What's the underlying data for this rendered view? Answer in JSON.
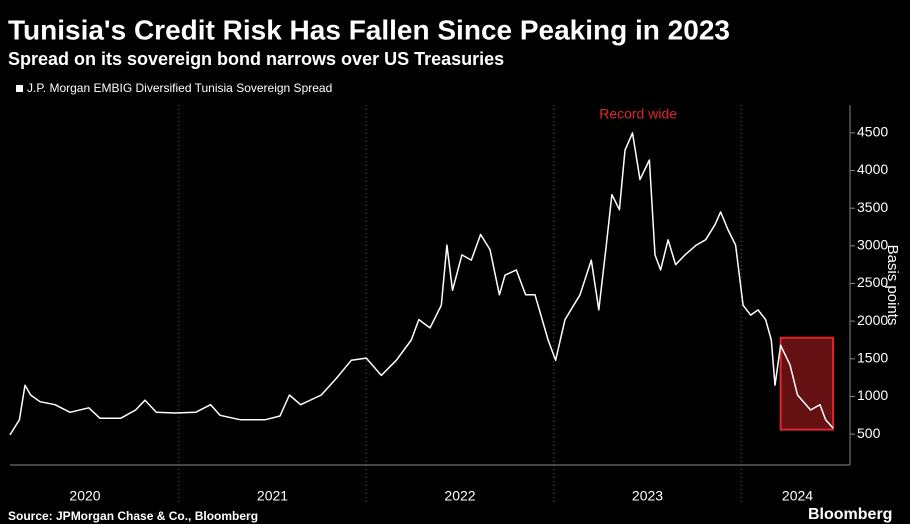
{
  "chart_data": {
    "type": "line",
    "title": "Tunisia's Credit Risk Has Fallen Since Peaking in 2023",
    "subtitle": "Spread on its sovereign bond narrows over US Treasuries",
    "y_label": "Basis points",
    "source": "Source: JPMorgan Chase & Co., Bloomberg",
    "brand": "Bloomberg",
    "x": [
      2020.1,
      2020.15,
      2020.18,
      2020.21,
      2020.26,
      2020.34,
      2020.42,
      2020.52,
      2020.58,
      2020.69,
      2020.77,
      2020.82,
      2020.88,
      2020.98,
      2021.09,
      2021.17,
      2021.22,
      2021.33,
      2021.46,
      2021.54,
      2021.59,
      2021.65,
      2021.76,
      2021.84,
      2021.92,
      2022.0,
      2022.08,
      2022.16,
      2022.24,
      2022.28,
      2022.34,
      2022.4,
      2022.43,
      2022.46,
      2022.51,
      2022.56,
      2022.61,
      2022.66,
      2022.71,
      2022.74,
      2022.8,
      2022.85,
      2022.9,
      2022.97,
      2023.01,
      2023.06,
      2023.14,
      2023.2,
      2023.24,
      2023.28,
      2023.31,
      2023.35,
      2023.38,
      2023.42,
      2023.46,
      2023.51,
      2023.54,
      2023.57,
      2023.61,
      2023.65,
      2023.7,
      2023.76,
      2023.81,
      2023.86,
      2023.89,
      2023.93,
      2023.97,
      2024.01,
      2024.05,
      2024.09,
      2024.13,
      2024.16,
      2024.18,
      2024.21,
      2024.26,
      2024.3,
      2024.37,
      2024.42,
      2024.45,
      2024.49
    ],
    "series": [
      {
        "name": "J.P. Morgan EMBIG Diversified Tunisia Sovereign Spread",
        "color": "#ffffff",
        "values": [
          490,
          690,
          1150,
          1020,
          930,
          890,
          790,
          850,
          710,
          710,
          820,
          950,
          790,
          780,
          790,
          890,
          750,
          690,
          690,
          740,
          1020,
          890,
          1020,
          1240,
          1480,
          1510,
          1280,
          1480,
          1750,
          2020,
          1910,
          2210,
          3010,
          2410,
          2880,
          2810,
          3150,
          2950,
          2350,
          2610,
          2680,
          2350,
          2350,
          1750,
          1480,
          2020,
          2350,
          2810,
          2150,
          3010,
          3680,
          3480,
          4270,
          4500,
          3880,
          4140,
          2880,
          2680,
          3080,
          2750,
          2880,
          3010,
          3080,
          3280,
          3450,
          3210,
          3010,
          2210,
          2080,
          2150,
          2020,
          1750,
          1150,
          1680,
          1420,
          1020,
          820,
          890,
          690,
          580
        ]
      }
    ],
    "xlim": [
      2020.1,
      2024.58
    ],
    "xticks": [
      {
        "value": 2020.5,
        "label": "2020"
      },
      {
        "value": 2021.5,
        "label": "2021"
      },
      {
        "value": 2022.5,
        "label": "2022"
      },
      {
        "value": 2023.5,
        "label": "2023"
      },
      {
        "value": 2024.3,
        "label": "2024"
      }
    ],
    "xgrid": [
      2021,
      2022,
      2023,
      2024
    ],
    "ylim": [
      90,
      4870
    ],
    "yticks": [
      500,
      1000,
      1500,
      2000,
      2500,
      3000,
      3500,
      4000,
      4500
    ],
    "highlight": {
      "x": [
        2024.21,
        2024.49
      ],
      "y": [
        560,
        1780
      ],
      "color": "#e0262b"
    },
    "annotations": [
      {
        "text": "Record wide",
        "x": 2023.45,
        "y": 4740,
        "color": "#e0262b"
      }
    ]
  }
}
